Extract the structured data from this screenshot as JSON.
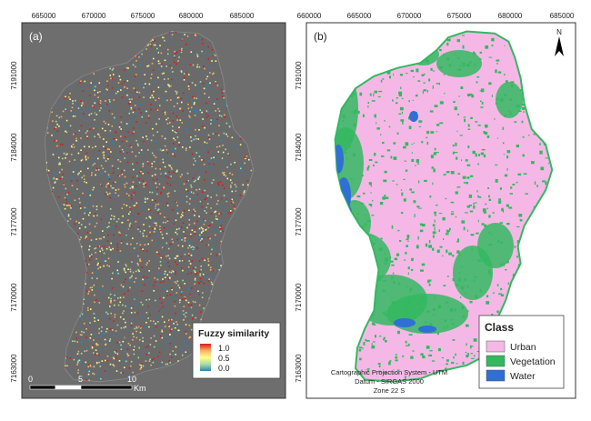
{
  "panel_a": {
    "label": "(a)",
    "top_ticks": [
      "665000",
      "670000",
      "675000",
      "680000",
      "685000"
    ],
    "left_ticks": [
      "7191000",
      "7184000",
      "7177000",
      "7170000",
      "7163000"
    ],
    "legend": {
      "title": "Fuzzy similarity",
      "max": "1.0",
      "mid": "0.5",
      "min": "0.0",
      "colors": [
        "#d7191c",
        "#fdae61",
        "#ffff8c",
        "#abdda4",
        "#2b83ba"
      ]
    },
    "scale_bar": {
      "ticks": [
        "0",
        "5",
        "10"
      ],
      "unit": "Km"
    },
    "background_color": "#6e6e6e"
  },
  "panel_b": {
    "label": "(b)",
    "top_ticks": [
      "660000",
      "665000",
      "670000",
      "675000",
      "680000",
      "685000"
    ],
    "left_ticks": [
      "7191000",
      "7184000",
      "7177000",
      "7170000",
      "7163000"
    ],
    "north_label": "N",
    "legend": {
      "title": "Class",
      "items": [
        {
          "label": "Urban",
          "color": "#f5b8e6"
        },
        {
          "label": "Vegetation",
          "color": "#33b860"
        },
        {
          "label": "Water",
          "color": "#2f6fd6"
        }
      ]
    },
    "projection": {
      "line1": "Cartographic Projection System - UTM",
      "line2": "Datum - SIRGAS 2000",
      "line3": "Zone 22 S"
    }
  }
}
